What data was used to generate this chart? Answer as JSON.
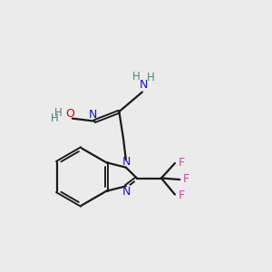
{
  "background_color": "#ebebeb",
  "bond_color": "#1a1a1a",
  "N_color": "#1414cc",
  "O_color": "#cc0000",
  "F_color": "#cc44aa",
  "H_color": "#4d8080",
  "figsize": [
    3.0,
    3.0
  ],
  "dpi": 100,
  "xlim": [
    0,
    10
  ],
  "ylim": [
    0,
    10
  ]
}
